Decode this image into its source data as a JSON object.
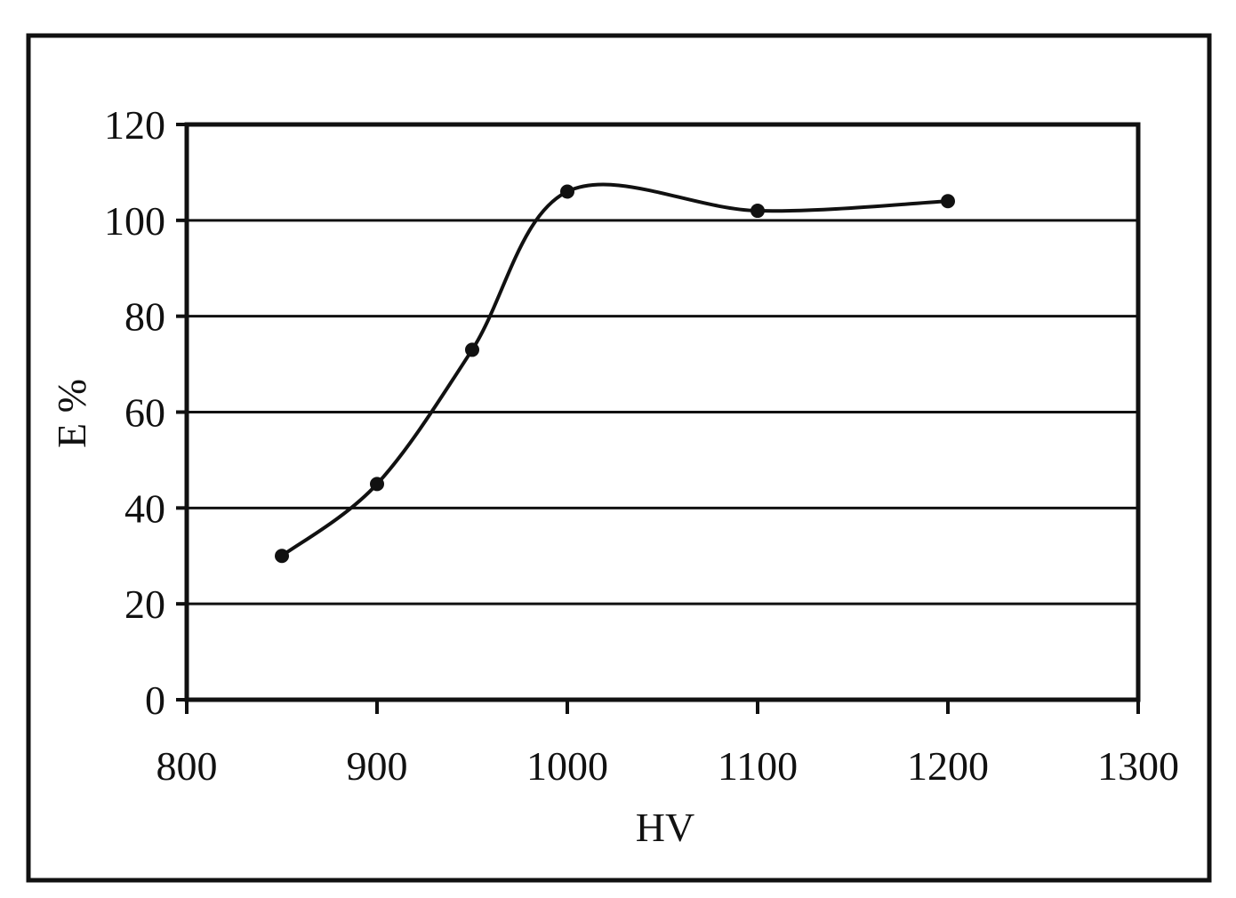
{
  "chart_data": {
    "type": "line",
    "title": "",
    "xlabel": "HV",
    "ylabel": "E %",
    "xlim": [
      800,
      1300
    ],
    "ylim": [
      0,
      120
    ],
    "x_ticks": [
      "800",
      "900",
      "1000",
      "1100",
      "1200",
      "1300"
    ],
    "y_ticks": [
      "0",
      "20",
      "40",
      "60",
      "80",
      "100",
      "120"
    ],
    "grid": "horizontal",
    "legend": "none",
    "smooth": true,
    "series": [
      {
        "x": [
          850,
          900,
          950,
          1000,
          1100,
          1200
        ],
        "y": [
          30,
          45,
          73,
          106,
          102,
          104
        ]
      }
    ],
    "colors": {
      "line": "#111111",
      "grid": "#111111",
      "frame": "#111111",
      "background": "#ffffff"
    }
  }
}
